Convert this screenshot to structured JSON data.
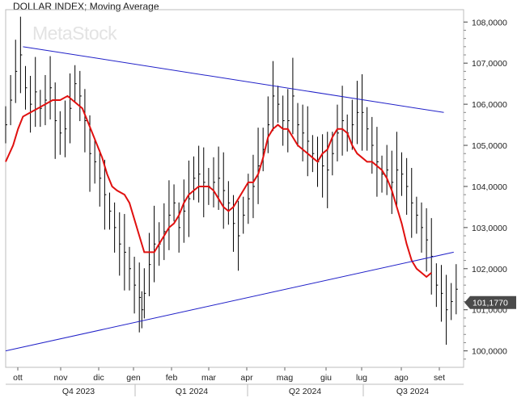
{
  "chart_data": {
    "type": "line",
    "title": "DOLLAR INDEX; Moving Average",
    "watermark": "MetaStock",
    "ylim": [
      99.6,
      108.3
    ],
    "y_ticks": [
      "108,0000",
      "107,0000",
      "106,0000",
      "105,0000",
      "104,0000",
      "103,0000",
      "102,0000",
      "101,0000",
      "100,0000"
    ],
    "y_tick_values": [
      108,
      107,
      106,
      105,
      104,
      103,
      102,
      101,
      100
    ],
    "last_price": 101.177,
    "last_price_label": "101,1770",
    "months": [
      "ott",
      "nov",
      "dic",
      "gen",
      "feb",
      "mar",
      "apr",
      "mag",
      "giu",
      "lug",
      "ago",
      "set"
    ],
    "quarters": [
      "Q4 2023",
      "Q1 2024",
      "Q2 2024",
      "Q3 2024"
    ],
    "series": [
      {
        "kind": "bars",
        "color": "#000000",
        "points": [
          [
            0,
            105.5
          ],
          [
            4,
            106.1
          ],
          [
            8,
            106.8
          ],
          [
            12,
            107.2
          ],
          [
            16,
            106.4
          ],
          [
            20,
            106.0
          ],
          [
            24,
            106.3
          ],
          [
            28,
            105.9
          ],
          [
            32,
            106.1
          ],
          [
            36,
            106.4
          ],
          [
            40,
            105.6
          ],
          [
            44,
            105.3
          ],
          [
            48,
            105.4
          ],
          [
            52,
            105.9
          ],
          [
            56,
            106.5
          ],
          [
            60,
            106.2
          ],
          [
            64,
            105.6
          ],
          [
            68,
            104.8
          ],
          [
            72,
            104.6
          ],
          [
            76,
            104.2
          ],
          [
            80,
            103.8
          ],
          [
            84,
            103.4
          ],
          [
            88,
            103.0
          ],
          [
            92,
            102.6
          ],
          [
            96,
            102.4
          ],
          [
            100,
            102.0
          ],
          [
            104,
            101.6
          ],
          [
            108,
            101.3
          ],
          [
            110,
            101.0
          ],
          [
            112,
            101.4
          ],
          [
            116,
            102.1
          ],
          [
            120,
            102.6
          ],
          [
            124,
            102.6
          ],
          [
            128,
            102.9
          ],
          [
            132,
            103.3
          ],
          [
            136,
            103.6
          ],
          [
            140,
            103.0
          ],
          [
            144,
            103.4
          ],
          [
            148,
            103.7
          ],
          [
            152,
            104.2
          ],
          [
            156,
            104.3
          ],
          [
            160,
            104.1
          ],
          [
            164,
            104.0
          ],
          [
            168,
            104.1
          ],
          [
            172,
            104.2
          ],
          [
            176,
            103.9
          ],
          [
            180,
            103.6
          ],
          [
            184,
            103.1
          ],
          [
            188,
            102.8
          ],
          [
            192,
            103.3
          ],
          [
            196,
            103.7
          ],
          [
            200,
            104.0
          ],
          [
            204,
            104.5
          ],
          [
            208,
            104.9
          ],
          [
            212,
            105.5
          ],
          [
            216,
            106.2
          ],
          [
            220,
            106.0
          ],
          [
            224,
            105.6
          ],
          [
            228,
            105.6
          ],
          [
            232,
            106.2
          ],
          [
            236,
            105.5
          ],
          [
            240,
            105.3
          ],
          [
            244,
            105.1
          ],
          [
            248,
            104.8
          ],
          [
            252,
            104.6
          ],
          [
            256,
            104.5
          ],
          [
            260,
            104.4
          ],
          [
            264,
            104.8
          ],
          [
            268,
            105.3
          ],
          [
            272,
            105.6
          ],
          [
            276,
            105.3
          ],
          [
            280,
            105.5
          ],
          [
            284,
            105.8
          ],
          [
            288,
            105.8
          ],
          [
            292,
            105.4
          ],
          [
            296,
            105.0
          ],
          [
            300,
            104.6
          ],
          [
            304,
            104.3
          ],
          [
            308,
            104.4
          ],
          [
            312,
            104.1
          ],
          [
            316,
            104.4
          ],
          [
            320,
            104.3
          ],
          [
            324,
            104.0
          ],
          [
            328,
            103.6
          ],
          [
            332,
            103.3
          ],
          [
            336,
            103.0
          ],
          [
            340,
            102.7
          ],
          [
            344,
            102.3
          ],
          [
            348,
            101.6
          ],
          [
            352,
            101.4
          ],
          [
            356,
            101.0
          ],
          [
            360,
            101.2
          ],
          [
            364,
            101.5
          ]
        ]
      },
      {
        "kind": "line",
        "color": "#e0100f",
        "points": [
          [
            0,
            104.6
          ],
          [
            6,
            105.0
          ],
          [
            10,
            105.4
          ],
          [
            14,
            105.7
          ],
          [
            20,
            105.8
          ],
          [
            26,
            105.9
          ],
          [
            32,
            106.0
          ],
          [
            38,
            106.1
          ],
          [
            44,
            106.1
          ],
          [
            50,
            106.2
          ],
          [
            54,
            106.1
          ],
          [
            58,
            106.0
          ],
          [
            62,
            105.9
          ],
          [
            66,
            105.6
          ],
          [
            70,
            105.3
          ],
          [
            74,
            105.0
          ],
          [
            78,
            104.7
          ],
          [
            82,
            104.3
          ],
          [
            86,
            104.0
          ],
          [
            90,
            103.9
          ],
          [
            96,
            103.8
          ],
          [
            100,
            103.6
          ],
          [
            104,
            103.2
          ],
          [
            108,
            102.8
          ],
          [
            112,
            102.4
          ],
          [
            116,
            102.4
          ],
          [
            120,
            102.4
          ],
          [
            124,
            102.6
          ],
          [
            128,
            102.8
          ],
          [
            132,
            103.0
          ],
          [
            136,
            103.1
          ],
          [
            140,
            103.3
          ],
          [
            144,
            103.6
          ],
          [
            148,
            103.8
          ],
          [
            152,
            103.9
          ],
          [
            156,
            104.0
          ],
          [
            160,
            104.0
          ],
          [
            164,
            104.0
          ],
          [
            168,
            103.9
          ],
          [
            172,
            103.7
          ],
          [
            176,
            103.5
          ],
          [
            180,
            103.4
          ],
          [
            184,
            103.5
          ],
          [
            188,
            103.7
          ],
          [
            192,
            103.9
          ],
          [
            196,
            104.1
          ],
          [
            200,
            104.1
          ],
          [
            204,
            104.3
          ],
          [
            208,
            104.7
          ],
          [
            212,
            105.2
          ],
          [
            216,
            105.4
          ],
          [
            220,
            105.5
          ],
          [
            224,
            105.4
          ],
          [
            228,
            105.4
          ],
          [
            232,
            105.2
          ],
          [
            236,
            105.0
          ],
          [
            240,
            104.9
          ],
          [
            244,
            104.8
          ],
          [
            248,
            104.7
          ],
          [
            252,
            104.6
          ],
          [
            256,
            104.8
          ],
          [
            260,
            104.9
          ],
          [
            264,
            105.2
          ],
          [
            268,
            105.4
          ],
          [
            272,
            105.4
          ],
          [
            276,
            105.3
          ],
          [
            280,
            105.0
          ],
          [
            284,
            104.8
          ],
          [
            288,
            104.7
          ],
          [
            292,
            104.6
          ],
          [
            296,
            104.6
          ],
          [
            300,
            104.5
          ],
          [
            304,
            104.4
          ],
          [
            308,
            104.2
          ],
          [
            312,
            103.9
          ],
          [
            316,
            103.5
          ],
          [
            320,
            103.1
          ],
          [
            324,
            102.6
          ],
          [
            328,
            102.2
          ],
          [
            332,
            102.0
          ],
          [
            336,
            101.9
          ],
          [
            340,
            101.8
          ],
          [
            344,
            101.9
          ]
        ]
      },
      {
        "kind": "trendline",
        "color": "#2020c8",
        "points": [
          [
            14,
            107.4
          ],
          [
            354,
            105.8
          ]
        ]
      },
      {
        "kind": "trendline",
        "color": "#2020c8",
        "points": [
          [
            0,
            100.0
          ],
          [
            362,
            102.4
          ]
        ]
      }
    ],
    "grid": false,
    "legend": "none"
  }
}
